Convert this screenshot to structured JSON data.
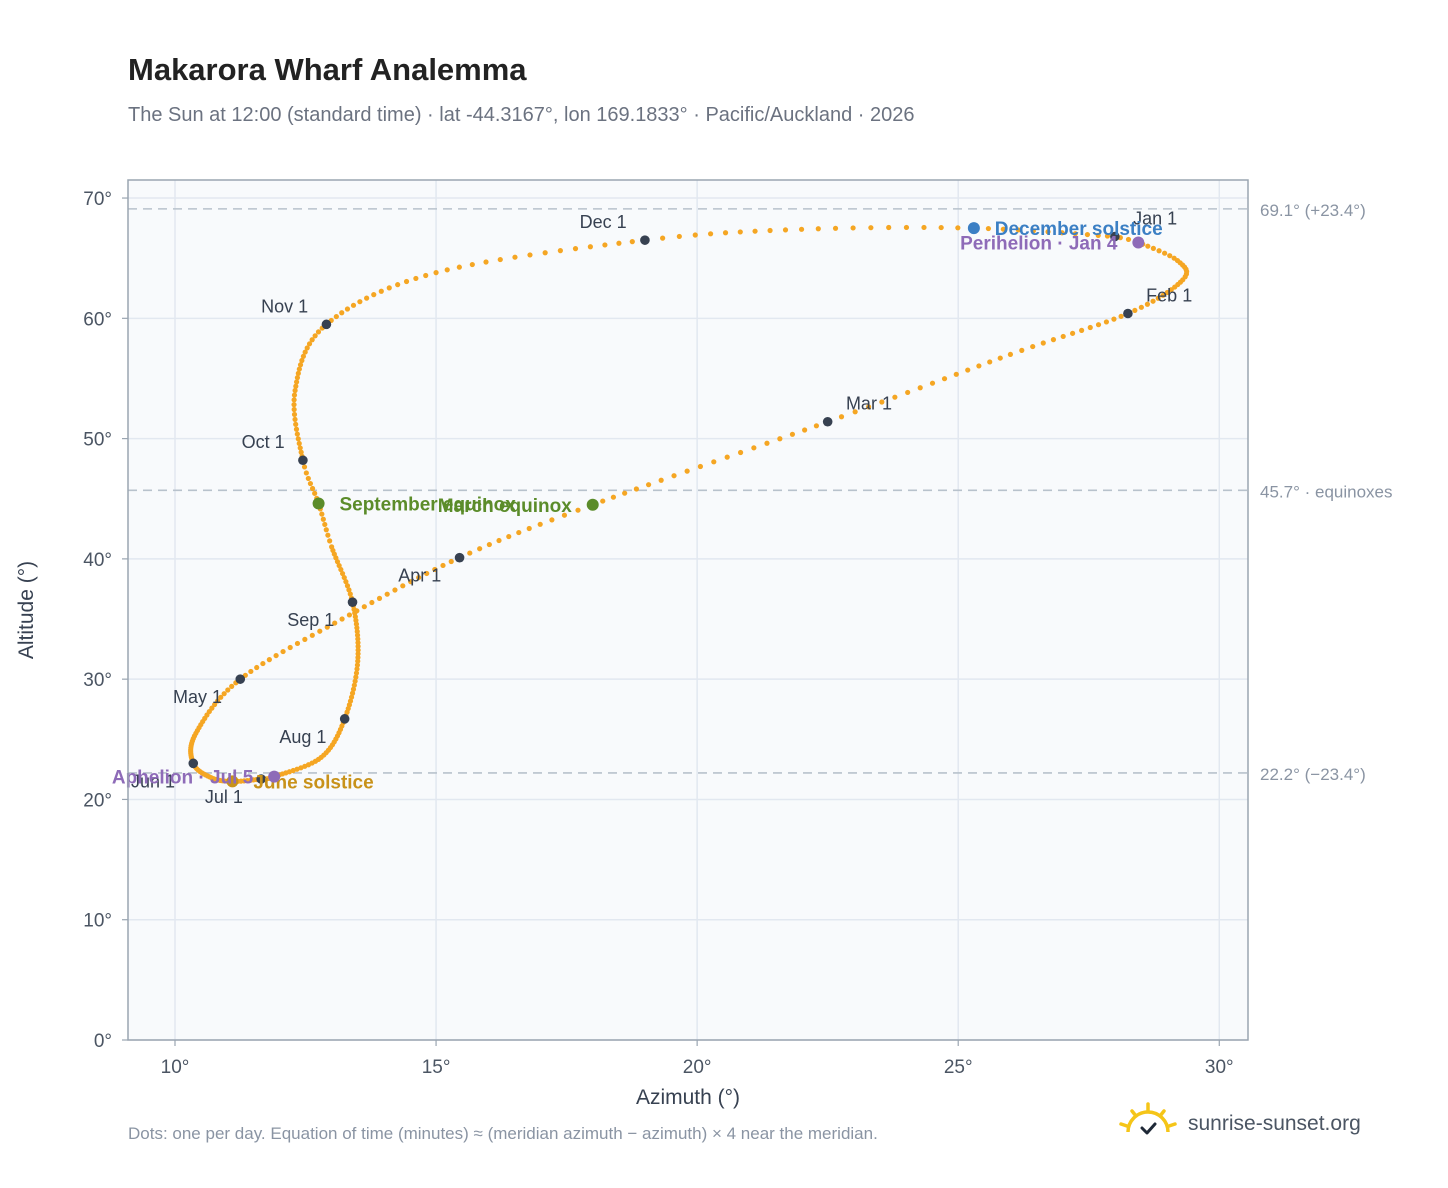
{
  "title": "Makarora Wharf Analemma",
  "subtitle": "The Sun at 12:00 (standard time) · lat -44.3167°, lon 169.1833° · Pacific/Auckland · 2026",
  "footnote": "Dots: one per day. Equation of time (minutes) ≈ (meridian azimuth − azimuth) × 4 near the meridian.",
  "brand": {
    "name": "sunrise-sunset.org",
    "icon": "sun-logo-icon"
  },
  "colors": {
    "curve": "#f5a623",
    "month_marker": "#374151",
    "equinox": "#5b8c2a",
    "december_solstice": "#3b7fc4",
    "june_solstice": "#c8921a",
    "apsides": "#8e6bb8",
    "plot_bg": "#f8fafc",
    "frame": "#9aa5b1",
    "grid": "#e2e8f0",
    "reference_line": "#b8c2cc"
  },
  "chart_data": {
    "type": "scatter",
    "xlabel": "Azimuth (°)",
    "ylabel": "Altitude (°)",
    "xlim": [
      9.1,
      30.55
    ],
    "ylim": [
      0,
      71.5
    ],
    "x_ticks": [
      10,
      15,
      20,
      25,
      30
    ],
    "x_tick_labels": [
      "10°",
      "15°",
      "20°",
      "25°",
      "30°"
    ],
    "y_ticks": [
      0,
      10,
      20,
      30,
      40,
      50,
      60,
      70
    ],
    "y_tick_labels": [
      "0°",
      "10°",
      "20°",
      "30°",
      "40°",
      "50°",
      "60°",
      "70°"
    ],
    "grid": true,
    "reference_lines": [
      {
        "y": 69.1,
        "label": "69.1° (+23.4°)"
      },
      {
        "y": 45.7,
        "label": "45.7° · equinoxes"
      },
      {
        "y": 22.2,
        "label": "22.2° (−23.4°)"
      }
    ],
    "daily_path": {
      "description": "one dot per day",
      "anchors": [
        {
          "day": 1,
          "x": 28.0,
          "y": 66.8
        },
        {
          "day": 4,
          "x": 28.45,
          "y": 66.3
        },
        {
          "day": 12,
          "x": 29.2,
          "y": 64.8
        },
        {
          "day": 20,
          "x": 29.3,
          "y": 63.2
        },
        {
          "day": 32,
          "x": 28.25,
          "y": 60.4
        },
        {
          "day": 45,
          "x": 26.0,
          "y": 57.0
        },
        {
          "day": 60,
          "x": 22.5,
          "y": 51.4
        },
        {
          "day": 79,
          "x": 18.0,
          "y": 44.5
        },
        {
          "day": 91,
          "x": 15.45,
          "y": 40.1
        },
        {
          "day": 106,
          "x": 13.2,
          "y": 35.0
        },
        {
          "day": 121,
          "x": 11.25,
          "y": 30.0
        },
        {
          "day": 137,
          "x": 10.4,
          "y": 25.5
        },
        {
          "day": 152,
          "x": 10.35,
          "y": 23.0
        },
        {
          "day": 163,
          "x": 10.7,
          "y": 21.8
        },
        {
          "day": 172,
          "x": 11.1,
          "y": 21.5
        },
        {
          "day": 182,
          "x": 11.65,
          "y": 21.7
        },
        {
          "day": 186,
          "x": 11.9,
          "y": 21.9
        },
        {
          "day": 200,
          "x": 12.8,
          "y": 23.5
        },
        {
          "day": 213,
          "x": 13.25,
          "y": 26.7
        },
        {
          "day": 228,
          "x": 13.5,
          "y": 31.5
        },
        {
          "day": 244,
          "x": 13.4,
          "y": 36.4
        },
        {
          "day": 258,
          "x": 13.0,
          "y": 41.0
        },
        {
          "day": 266,
          "x": 12.75,
          "y": 44.6
        },
        {
          "day": 274,
          "x": 12.45,
          "y": 48.2
        },
        {
          "day": 289,
          "x": 12.3,
          "y": 54.0
        },
        {
          "day": 305,
          "x": 12.9,
          "y": 59.5
        },
        {
          "day": 320,
          "x": 15.0,
          "y": 63.8
        },
        {
          "day": 335,
          "x": 19.0,
          "y": 66.5
        },
        {
          "day": 345,
          "x": 22.0,
          "y": 67.4
        },
        {
          "day": 355,
          "x": 25.3,
          "y": 67.5
        },
        {
          "day": 366,
          "x": 28.0,
          "y": 66.8
        }
      ]
    },
    "month_markers": [
      {
        "label": "Jan 1",
        "x": 28.0,
        "y": 66.8,
        "anchor": "start",
        "dx": 0.35,
        "dy": 1.5
      },
      {
        "label": "Feb 1",
        "x": 28.25,
        "y": 60.4,
        "anchor": "start",
        "dx": 0.35,
        "dy": 1.5
      },
      {
        "label": "Mar 1",
        "x": 22.5,
        "y": 51.4,
        "anchor": "start",
        "dx": 0.35,
        "dy": 1.5
      },
      {
        "label": "Apr 1",
        "x": 15.45,
        "y": 40.1,
        "anchor": "end",
        "dx": -0.35,
        "dy": -1.5
      },
      {
        "label": "May 1",
        "x": 11.25,
        "y": 30.0,
        "anchor": "end",
        "dx": -0.35,
        "dy": -1.5
      },
      {
        "label": "Jun 1",
        "x": 10.35,
        "y": 23.0,
        "anchor": "end",
        "dx": -0.35,
        "dy": -1.5
      },
      {
        "label": "Jul 1",
        "x": 11.65,
        "y": 21.7,
        "anchor": "end",
        "dx": -0.35,
        "dy": -1.5
      },
      {
        "label": "Aug 1",
        "x": 13.25,
        "y": 26.7,
        "anchor": "end",
        "dx": -0.35,
        "dy": -1.5
      },
      {
        "label": "Sep 1",
        "x": 13.4,
        "y": 36.4,
        "anchor": "end",
        "dx": -0.35,
        "dy": -1.5
      },
      {
        "label": "Oct 1",
        "x": 12.45,
        "y": 48.2,
        "anchor": "end",
        "dx": -0.35,
        "dy": 1.5
      },
      {
        "label": "Nov 1",
        "x": 12.9,
        "y": 59.5,
        "anchor": "end",
        "dx": -0.35,
        "dy": 1.5
      },
      {
        "label": "Dec 1",
        "x": 19.0,
        "y": 66.5,
        "anchor": "end",
        "dx": -0.35,
        "dy": 1.5
      }
    ],
    "events": [
      {
        "label": "March equinox",
        "x": 18.0,
        "y": 44.5,
        "color": "#5b8c2a",
        "anchor": "end",
        "dx": -0.4
      },
      {
        "label": "September equinox",
        "x": 12.75,
        "y": 44.6,
        "color": "#5b8c2a",
        "anchor": "start",
        "dx": 0.4
      },
      {
        "label": "December solstice",
        "x": 25.3,
        "y": 67.5,
        "color": "#3b7fc4",
        "anchor": "start",
        "dx": 0.4
      },
      {
        "label": "June solstice",
        "x": 11.1,
        "y": 21.5,
        "color": "#c8921a",
        "anchor": "start",
        "dx": 0.4
      },
      {
        "label": "Perihelion · Jan 4",
        "x": 28.45,
        "y": 66.3,
        "color": "#8e6bb8",
        "anchor": "end",
        "dx": -0.4
      },
      {
        "label": "Aphelion · Jul 5",
        "x": 11.9,
        "y": 21.9,
        "color": "#8e6bb8",
        "anchor": "end",
        "dx": -0.4
      }
    ]
  }
}
